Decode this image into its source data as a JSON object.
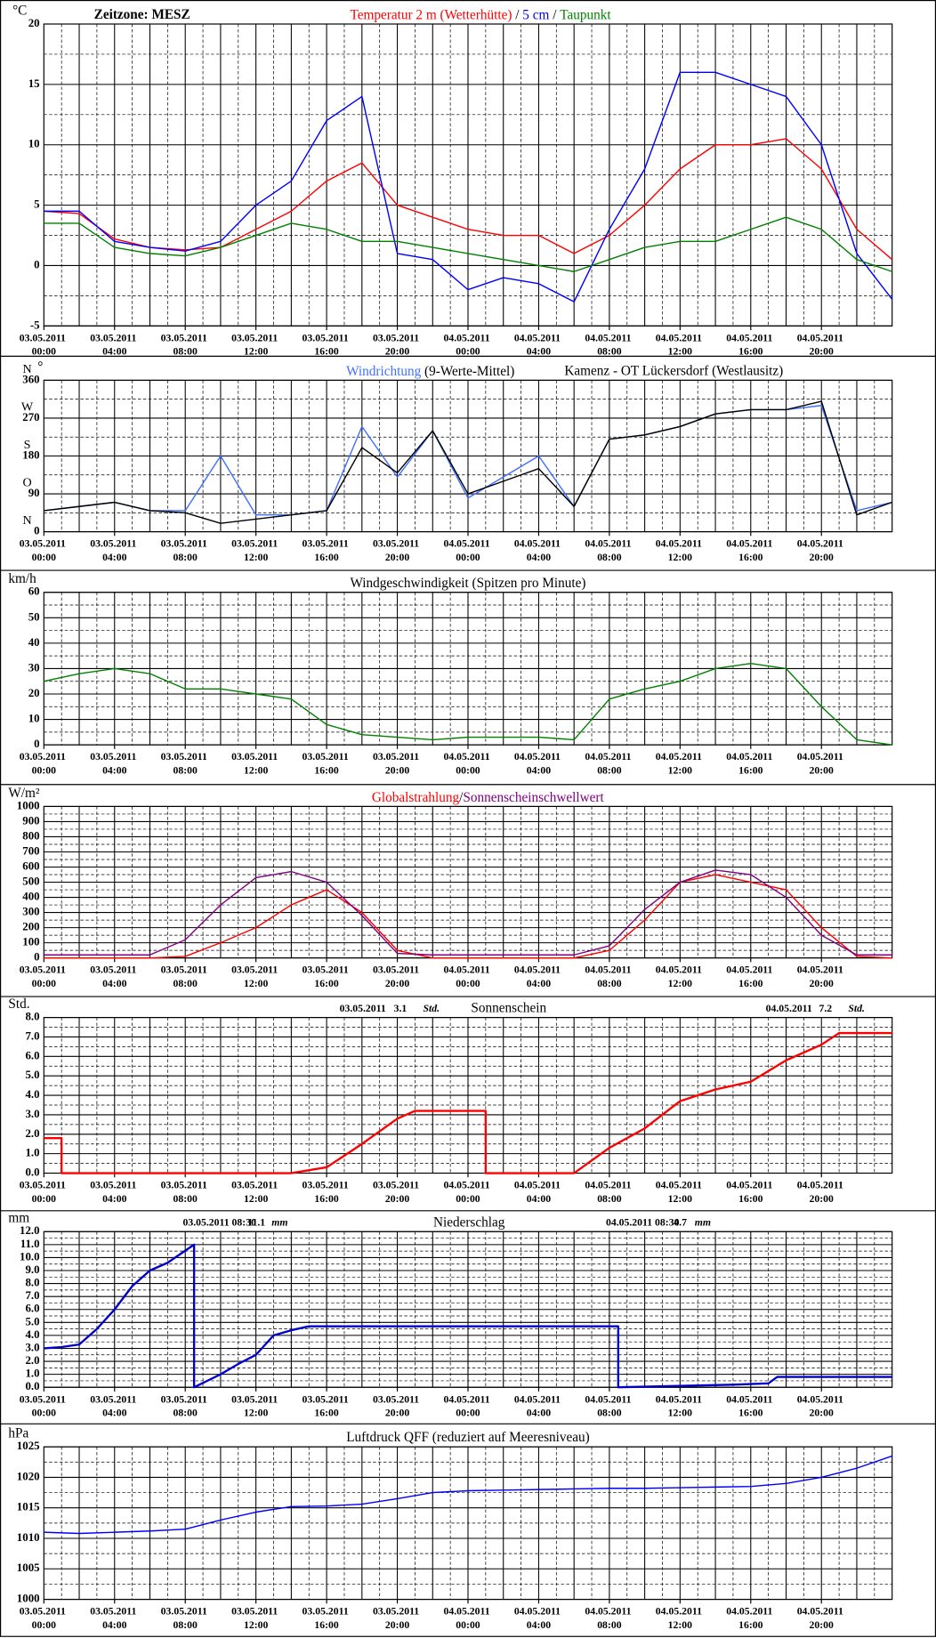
{
  "chart_data": [
    {
      "type": "line",
      "timezone": "Zeitzone: MESZ",
      "unit": "°C",
      "title_separator": "/",
      "xlim": [
        "03.05.2011 00:00",
        "04.05.2011 24:00"
      ],
      "xticks": [
        "03.05.2011 00:00",
        "03.05.2011 04:00",
        "03.05.2011 08:00",
        "03.05.2011 12:00",
        "03.05.2011 16:00",
        "03.05.2011 20:00",
        "04.05.2011 00:00",
        "04.05.2011 04:00",
        "04.05.2011 08:00",
        "04.05.2011 12:00",
        "04.05.2011 16:00",
        "04.05.2011 20:00"
      ],
      "ylim": [
        -5,
        20
      ],
      "yticks": [
        -5,
        0,
        5,
        10,
        15,
        20
      ],
      "grid": true,
      "x": [
        "03.05.2011 00:00",
        "03.05.2011 02:00",
        "03.05.2011 04:00",
        "03.05.2011 06:00",
        "03.05.2011 08:00",
        "03.05.2011 10:00",
        "03.05.2011 12:00",
        "03.05.2011 14:00",
        "03.05.2011 16:00",
        "03.05.2011 18:00",
        "03.05.2011 20:00",
        "03.05.2011 22:00",
        "04.05.2011 00:00",
        "04.05.2011 02:00",
        "04.05.2011 04:00",
        "04.05.2011 06:00",
        "04.05.2011 08:00",
        "04.05.2011 10:00",
        "04.05.2011 12:00",
        "04.05.2011 14:00",
        "04.05.2011 16:00",
        "04.05.2011 18:00",
        "04.05.2011 20:00",
        "04.05.2011 22:00",
        "04.05.2011 24:00"
      ],
      "series": [
        {
          "name": "Temperatur 2 m (Wetterhütte)",
          "color": "#ff0000",
          "values": [
            4.5,
            4.3,
            2.2,
            1.5,
            1.3,
            1.5,
            3.0,
            4.5,
            7.0,
            8.5,
            5.0,
            4.0,
            3.0,
            2.5,
            2.5,
            1.0,
            2.5,
            5.0,
            8.0,
            10.0,
            10.0,
            10.5,
            8.0,
            3.0,
            0.5
          ]
        },
        {
          "name": "5 cm",
          "color": "#0000ff",
          "values": [
            4.5,
            4.5,
            2.0,
            1.5,
            1.2,
            2.0,
            5.0,
            7.0,
            12.0,
            14.0,
            1.0,
            0.5,
            -2.0,
            -1.0,
            -1.5,
            -3.0,
            3.0,
            8.0,
            16.0,
            16.0,
            15.0,
            14.0,
            10.0,
            1.0,
            -2.8
          ]
        },
        {
          "name": "Taupunkt",
          "color": "#008000",
          "values": [
            3.5,
            3.5,
            1.5,
            1.0,
            0.8,
            1.5,
            2.5,
            3.5,
            3.0,
            2.0,
            2.0,
            1.5,
            1.0,
            0.5,
            0.0,
            -0.5,
            0.5,
            1.5,
            2.0,
            2.0,
            3.0,
            4.0,
            3.0,
            0.5,
            -0.5
          ]
        }
      ]
    },
    {
      "type": "line",
      "station": "Kamenz - OT Lückersdorf (Westlausitz)",
      "unit": "°",
      "xlim": [
        "03.05.2011 00:00",
        "04.05.2011 24:00"
      ],
      "xticks": [
        "03.05.2011 00:00",
        "03.05.2011 04:00",
        "03.05.2011 08:00",
        "03.05.2011 12:00",
        "03.05.2011 16:00",
        "03.05.2011 20:00",
        "04.05.2011 00:00",
        "04.05.2011 04:00",
        "04.05.2011 08:00",
        "04.05.2011 12:00",
        "04.05.2011 16:00",
        "04.05.2011 20:00"
      ],
      "ylim": [
        0,
        360
      ],
      "yticks": [
        0,
        90,
        180,
        270,
        360
      ],
      "compass_labels": [
        "N",
        "O",
        "S",
        "W",
        "N"
      ],
      "grid": true,
      "x": [
        "03.05.2011 00:00",
        "03.05.2011 02:00",
        "03.05.2011 04:00",
        "03.05.2011 06:00",
        "03.05.2011 08:00",
        "03.05.2011 10:00",
        "03.05.2011 12:00",
        "03.05.2011 14:00",
        "03.05.2011 16:00",
        "03.05.2011 18:00",
        "03.05.2011 20:00",
        "03.05.2011 22:00",
        "04.05.2011 00:00",
        "04.05.2011 02:00",
        "04.05.2011 04:00",
        "04.05.2011 06:00",
        "04.05.2011 08:00",
        "04.05.2011 10:00",
        "04.05.2011 12:00",
        "04.05.2011 14:00",
        "04.05.2011 16:00",
        "04.05.2011 18:00",
        "04.05.2011 20:00",
        "04.05.2011 22:00",
        "04.05.2011 24:00"
      ],
      "series": [
        {
          "name": "Windrichtung",
          "color": "#3f6fff",
          "values": [
            50,
            60,
            70,
            50,
            50,
            180,
            40,
            40,
            50,
            250,
            130,
            240,
            80,
            130,
            180,
            60,
            220,
            230,
            250,
            280,
            290,
            290,
            300,
            50,
            70
          ]
        },
        {
          "name": "(9-Werte-Mittel)",
          "color": "#000000",
          "values": [
            50,
            60,
            70,
            50,
            45,
            20,
            30,
            40,
            50,
            200,
            140,
            240,
            90,
            120,
            150,
            60,
            220,
            230,
            250,
            280,
            290,
            290,
            310,
            40,
            70
          ]
        }
      ]
    },
    {
      "type": "line",
      "title": "Windgeschwindigkeit (Spitzen pro Minute)",
      "unit": "km/h",
      "color": "#008000",
      "xlim": [
        "03.05.2011 00:00",
        "04.05.2011 24:00"
      ],
      "xticks": [
        "03.05.2011 00:00",
        "03.05.2011 04:00",
        "03.05.2011 08:00",
        "03.05.2011 12:00",
        "03.05.2011 16:00",
        "03.05.2011 20:00",
        "04.05.2011 00:00",
        "04.05.2011 04:00",
        "04.05.2011 08:00",
        "04.05.2011 12:00",
        "04.05.2011 16:00",
        "04.05.2011 20:00"
      ],
      "ylim": [
        0,
        60
      ],
      "yticks": [
        0,
        10,
        20,
        30,
        40,
        50,
        60
      ],
      "grid": true,
      "x": [
        "03.05.2011 00:00",
        "03.05.2011 02:00",
        "03.05.2011 04:00",
        "03.05.2011 06:00",
        "03.05.2011 08:00",
        "03.05.2011 10:00",
        "03.05.2011 12:00",
        "03.05.2011 14:00",
        "03.05.2011 16:00",
        "03.05.2011 18:00",
        "03.05.2011 20:00",
        "03.05.2011 22:00",
        "04.05.2011 00:00",
        "04.05.2011 02:00",
        "04.05.2011 04:00",
        "04.05.2011 06:00",
        "04.05.2011 08:00",
        "04.05.2011 10:00",
        "04.05.2011 12:00",
        "04.05.2011 14:00",
        "04.05.2011 16:00",
        "04.05.2011 18:00",
        "04.05.2011 20:00",
        "04.05.2011 22:00",
        "04.05.2011 24:00"
      ],
      "values": [
        25,
        28,
        30,
        28,
        22,
        22,
        20,
        18,
        8,
        4,
        3,
        2,
        3,
        3,
        3,
        2,
        18,
        22,
        25,
        30,
        32,
        30,
        15,
        2,
        0
      ]
    },
    {
      "type": "line",
      "unit": "W/m²",
      "title_separator": "/",
      "xlim": [
        "03.05.2011 00:00",
        "04.05.2011 24:00"
      ],
      "xticks": [
        "03.05.2011 00:00",
        "03.05.2011 04:00",
        "03.05.2011 08:00",
        "03.05.2011 12:00",
        "03.05.2011 16:00",
        "03.05.2011 20:00",
        "04.05.2011 00:00",
        "04.05.2011 04:00",
        "04.05.2011 08:00",
        "04.05.2011 12:00",
        "04.05.2011 16:00",
        "04.05.2011 20:00"
      ],
      "ylim": [
        0,
        1000
      ],
      "yticks": [
        0,
        100,
        200,
        300,
        400,
        500,
        600,
        700,
        800,
        900,
        1000
      ],
      "grid": true,
      "x": [
        "03.05.2011 00:00",
        "03.05.2011 02:00",
        "03.05.2011 04:00",
        "03.05.2011 06:00",
        "03.05.2011 08:00",
        "03.05.2011 10:00",
        "03.05.2011 12:00",
        "03.05.2011 14:00",
        "03.05.2011 16:00",
        "03.05.2011 18:00",
        "03.05.2011 20:00",
        "03.05.2011 22:00",
        "04.05.2011 00:00",
        "04.05.2011 02:00",
        "04.05.2011 04:00",
        "04.05.2011 06:00",
        "04.05.2011 08:00",
        "04.05.2011 10:00",
        "04.05.2011 12:00",
        "04.05.2011 14:00",
        "04.05.2011 16:00",
        "04.05.2011 18:00",
        "04.05.2011 20:00",
        "04.05.2011 22:00",
        "04.05.2011 24:00"
      ],
      "series": [
        {
          "name": "Globalstrahlung",
          "color": "#ff0000",
          "values": [
            0,
            0,
            0,
            0,
            10,
            100,
            200,
            350,
            450,
            300,
            50,
            0,
            0,
            0,
            0,
            0,
            50,
            250,
            500,
            550,
            500,
            450,
            200,
            10,
            0
          ]
        },
        {
          "name": "Sonnenscheinschwellwert",
          "color": "#800080",
          "values": [
            20,
            20,
            20,
            20,
            120,
            350,
            530,
            570,
            500,
            280,
            30,
            20,
            20,
            20,
            20,
            20,
            80,
            320,
            500,
            580,
            550,
            400,
            150,
            20,
            20
          ]
        }
      ]
    },
    {
      "type": "line",
      "title": "Sonnenschein",
      "unit": "Std.",
      "color": "#ff0000",
      "annotations": [
        {
          "date": "03.05.2011",
          "total": 3.1,
          "unit": "Std."
        },
        {
          "date": "04.05.2011",
          "total": 7.2,
          "unit": "Std."
        }
      ],
      "xlim": [
        "03.05.2011 00:00",
        "04.05.2011 24:00"
      ],
      "xticks": [
        "03.05.2011 00:00",
        "03.05.2011 04:00",
        "03.05.2011 08:00",
        "03.05.2011 12:00",
        "03.05.2011 16:00",
        "03.05.2011 20:00",
        "04.05.2011 00:00",
        "04.05.2011 04:00",
        "04.05.2011 08:00",
        "04.05.2011 12:00",
        "04.05.2011 16:00",
        "04.05.2011 20:00"
      ],
      "ylim": [
        0,
        8
      ],
      "yticks": [
        {
          "value": 0,
          "label": "0.0"
        },
        {
          "value": 1,
          "label": "1.0"
        },
        {
          "value": 2,
          "label": "2.0"
        },
        {
          "value": 3,
          "label": "3.0"
        },
        {
          "value": 4,
          "label": "4.0"
        },
        {
          "value": 5,
          "label": "5.0"
        },
        {
          "value": 6,
          "label": "6.0"
        },
        {
          "value": 7,
          "label": "7.0"
        },
        {
          "value": 8,
          "label": "8.0"
        }
      ],
      "grid": true,
      "x": [
        "03.05.2011 00:00",
        "03.05.2011 01:00",
        "03.05.2011 01:00",
        "03.05.2011 14:00",
        "03.05.2011 16:00",
        "03.05.2011 18:00",
        "03.05.2011 20:00",
        "03.05.2011 21:00",
        "04.05.2011 01:00",
        "04.05.2011 01:00",
        "04.05.2011 06:00",
        "04.05.2011 08:00",
        "04.05.2011 10:00",
        "04.05.2011 12:00",
        "04.05.2011 14:00",
        "04.05.2011 16:00",
        "04.05.2011 18:00",
        "04.05.2011 20:00",
        "04.05.2011 21:00",
        "04.05.2011 24:00"
      ],
      "values": [
        1.8,
        1.8,
        0,
        0,
        0.3,
        1.5,
        2.8,
        3.2,
        3.2,
        0,
        0,
        1.3,
        2.3,
        3.7,
        4.3,
        4.7,
        5.8,
        6.6,
        7.2,
        7.2
      ]
    },
    {
      "type": "line",
      "title": "Niederschlag",
      "unit": "mm",
      "color": "#0000cc",
      "annotations": [
        {
          "date": "03.05.2011 08:30",
          "total": 11.1,
          "unit": "mm"
        },
        {
          "date": "04.05.2011 08:30",
          "total": 4.7,
          "unit": "mm"
        }
      ],
      "xlim": [
        "03.05.2011 00:00",
        "04.05.2011 24:00"
      ],
      "xticks": [
        "03.05.2011 00:00",
        "03.05.2011 04:00",
        "03.05.2011 08:00",
        "03.05.2011 12:00",
        "03.05.2011 16:00",
        "03.05.2011 20:00",
        "04.05.2011 00:00",
        "04.05.2011 04:00",
        "04.05.2011 08:00",
        "04.05.2011 12:00",
        "04.05.2011 16:00",
        "04.05.2011 20:00"
      ],
      "ylim": [
        0,
        12
      ],
      "yticks": [
        {
          "value": 0,
          "label": "0.0"
        },
        {
          "value": 1,
          "label": "1.0"
        },
        {
          "value": 2,
          "label": "2.0"
        },
        {
          "value": 3,
          "label": "3.0"
        },
        {
          "value": 4,
          "label": "4.0"
        },
        {
          "value": 5,
          "label": "5.0"
        },
        {
          "value": 6,
          "label": "6.0"
        },
        {
          "value": 7,
          "label": "7.0"
        },
        {
          "value": 8,
          "label": "8.0"
        },
        {
          "value": 9,
          "label": "9.0"
        },
        {
          "value": 10,
          "label": "10.0"
        },
        {
          "value": 11,
          "label": "11.0"
        },
        {
          "value": 12,
          "label": "12.0"
        }
      ],
      "grid": true,
      "x": [
        "03.05.2011 00:00",
        "03.05.2011 01:00",
        "03.05.2011 02:00",
        "03.05.2011 03:00",
        "03.05.2011 04:00",
        "03.05.2011 05:00",
        "03.05.2011 06:00",
        "03.05.2011 07:00",
        "03.05.2011 08:30",
        "03.05.2011 08:30",
        "03.05.2011 10:00",
        "03.05.2011 11:00",
        "03.05.2011 12:00",
        "03.05.2011 13:00",
        "03.05.2011 14:00",
        "03.05.2011 15:00",
        "04.05.2011 08:30",
        "04.05.2011 08:30",
        "04.05.2011 15:00",
        "04.05.2011 17:00",
        "04.05.2011 17:30",
        "04.05.2011 24:00"
      ],
      "values": [
        3.0,
        3.1,
        3.3,
        4.5,
        6.0,
        7.8,
        9.0,
        9.6,
        11.0,
        0.0,
        1.0,
        1.8,
        2.5,
        4.0,
        4.4,
        4.7,
        4.7,
        0.0,
        0.2,
        0.3,
        0.8,
        0.8
      ]
    },
    {
      "type": "line",
      "title": "Luftdruck QFF (reduziert auf Meeresniveau)",
      "unit": "hPa",
      "color": "#0000ff",
      "xlim": [
        "03.05.2011 00:00",
        "04.05.2011 24:00"
      ],
      "xticks": [
        "03.05.2011 00:00",
        "03.05.2011 04:00",
        "03.05.2011 08:00",
        "03.05.2011 12:00",
        "03.05.2011 16:00",
        "03.05.2011 20:00",
        "04.05.2011 00:00",
        "04.05.2011 04:00",
        "04.05.2011 08:00",
        "04.05.2011 12:00",
        "04.05.2011 16:00",
        "04.05.2011 20:00"
      ],
      "ylim": [
        1000,
        1025
      ],
      "yticks": [
        1000,
        1005,
        1010,
        1015,
        1020,
        1025
      ],
      "grid": true,
      "x": [
        "03.05.2011 00:00",
        "03.05.2011 02:00",
        "03.05.2011 04:00",
        "03.05.2011 06:00",
        "03.05.2011 08:00",
        "03.05.2011 10:00",
        "03.05.2011 12:00",
        "03.05.2011 14:00",
        "03.05.2011 16:00",
        "03.05.2011 18:00",
        "03.05.2011 20:00",
        "03.05.2011 22:00",
        "04.05.2011 00:00",
        "04.05.2011 02:00",
        "04.05.2011 04:00",
        "04.05.2011 06:00",
        "04.05.2011 08:00",
        "04.05.2011 10:00",
        "04.05.2011 12:00",
        "04.05.2011 14:00",
        "04.05.2011 16:00",
        "04.05.2011 18:00",
        "04.05.2011 20:00",
        "04.05.2011 22:00",
        "04.05.2011 24:00"
      ],
      "values": [
        1011,
        1010.8,
        1011,
        1011.2,
        1011.5,
        1013,
        1014.3,
        1015.2,
        1015.3,
        1015.6,
        1016.5,
        1017.5,
        1017.8,
        1017.9,
        1018,
        1018.1,
        1018.2,
        1018.2,
        1018.3,
        1018.4,
        1018.5,
        1019,
        1020,
        1021.5,
        1023.5
      ]
    }
  ]
}
